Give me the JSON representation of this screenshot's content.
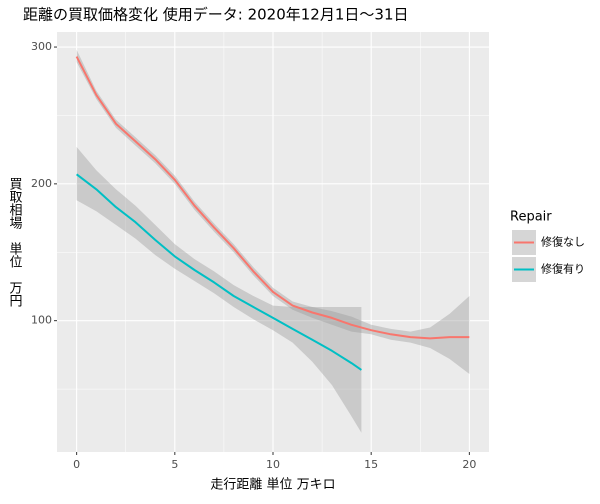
{
  "chart_data": {
    "type": "line",
    "title": "距離の買取価格変化 使用データ: 2020年12月1日～31日",
    "x_label": "走行距離 単位 万キロ",
    "y_label": "買取相場　単位　万円",
    "legend_title": "Repair",
    "xlim": [
      -1,
      21
    ],
    "xticks": [
      0,
      5,
      10,
      15,
      20
    ],
    "xminor": [
      2.5,
      7.5,
      12.5,
      17.5
    ],
    "ylim": [
      4,
      311
    ],
    "yticks": [
      100,
      200,
      300
    ],
    "yminor": [
      50,
      150,
      250
    ],
    "grid": true,
    "legend": "right",
    "series": [
      {
        "name": "修復なし",
        "color": "#F8766D",
        "x": [
          0,
          1,
          2,
          3,
          4,
          5,
          6,
          7,
          8,
          9,
          10,
          11,
          12,
          13,
          14,
          15,
          16,
          17,
          18,
          19,
          20
        ],
        "values": [
          293,
          265,
          244,
          231,
          218,
          203,
          184,
          168,
          153,
          136,
          121,
          111,
          106,
          102,
          97,
          93,
          90,
          88,
          87,
          88,
          88
        ],
        "lower": [
          289,
          262,
          241,
          228,
          215,
          200,
          181,
          165,
          150,
          133,
          118,
          108,
          102,
          97,
          92,
          90,
          86,
          84,
          80,
          72,
          61
        ],
        "upper": [
          298,
          268,
          247,
          234,
          221,
          206,
          187,
          171,
          156,
          139,
          124,
          114,
          110,
          107,
          103,
          97,
          94,
          92,
          95,
          105,
          118
        ]
      },
      {
        "name": "修復有り",
        "color": "#00BFC4",
        "x": [
          0,
          1,
          2,
          3,
          4,
          5,
          6,
          7,
          8,
          9,
          10,
          11,
          12,
          13,
          14,
          14.5
        ],
        "values": [
          207,
          196,
          183,
          172,
          159,
          147,
          137,
          128,
          118,
          110,
          102,
          94,
          86,
          78,
          69,
          64
        ],
        "lower": [
          188,
          180,
          170,
          160,
          148,
          138,
          129,
          120,
          110,
          101,
          93,
          84,
          70,
          53,
          30,
          18
        ],
        "upper": [
          227,
          210,
          196,
          184,
          170,
          156,
          145,
          136,
          126,
          118,
          111,
          110,
          110,
          110,
          110,
          110
        ]
      }
    ]
  }
}
